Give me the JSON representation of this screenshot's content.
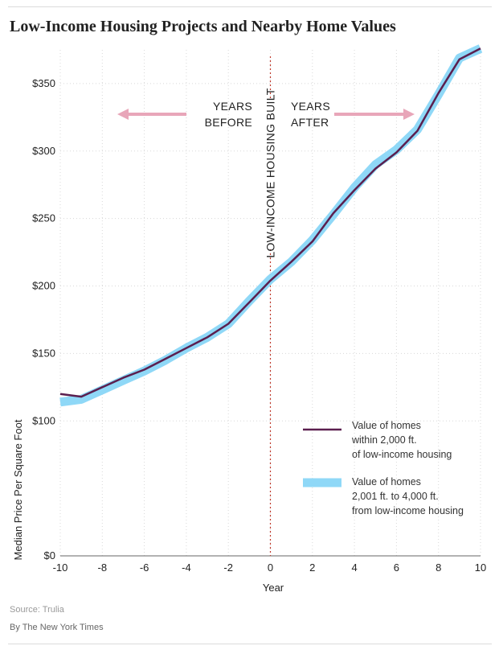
{
  "title": "Low-Income Housing Projects and Nearby Home Values",
  "source": "Source: Trulia",
  "credit": "By The New York Times",
  "colors": {
    "near": "#5b1f4f",
    "far": "#8fd8f7",
    "arrow": "#e8a6b9",
    "divider": "#c0392b"
  },
  "annotations": {
    "years_before": [
      "YEARS",
      "BEFORE"
    ],
    "years_after": [
      "YEARS",
      "AFTER"
    ],
    "built": "LOW-INCOME HOUSING BUILT"
  },
  "chart_data": {
    "type": "line",
    "title": "Low-Income Housing Projects and Nearby Home Values",
    "xlabel": "Year",
    "ylabel": "Median Price Per Square Foot",
    "xlim": [
      -10,
      10
    ],
    "ylim": [
      0,
      375
    ],
    "x_ticks": [
      -10,
      -8,
      -6,
      -4,
      -2,
      0,
      2,
      4,
      6,
      8,
      10
    ],
    "x_tick_labels": [
      "-10",
      "-8",
      "-6",
      "-4",
      "-2",
      "0",
      "2",
      "4",
      "6",
      "8",
      "10"
    ],
    "y_ticks": [
      0,
      100,
      150,
      200,
      250,
      300,
      350
    ],
    "y_tick_labels": [
      "$0",
      "$100",
      "$150",
      "$200",
      "$250",
      "$300",
      "$350"
    ],
    "x": [
      -10,
      -9,
      -8,
      -7,
      -6,
      -5,
      -4,
      -3,
      -2,
      -1,
      0,
      1,
      2,
      3,
      4,
      5,
      6,
      7,
      8,
      9,
      10
    ],
    "series": [
      {
        "name": "Value of homes within 2,000 ft. of low-income housing",
        "legend": [
          "Value of homes",
          "within 2,000 ft.",
          "of low-income housing"
        ],
        "style": "thin-line",
        "values": [
          120,
          118,
          125,
          132,
          138,
          146,
          154,
          162,
          172,
          188,
          204,
          218,
          233,
          254,
          271,
          287,
          299,
          315,
          343,
          368,
          376
        ]
      },
      {
        "name": "Value of homes 2,001 ft. to 4,000 ft. from low-income housing",
        "legend": [
          "Value of homes",
          "2,001 ft. to 4,000 ft.",
          "from low-income housing"
        ],
        "style": "thick-band",
        "values": [
          114,
          116,
          123,
          130,
          137,
          145,
          154,
          162,
          172,
          189,
          205,
          218,
          234,
          253,
          273,
          290,
          301,
          316,
          342,
          369,
          376
        ]
      }
    ],
    "vertical_marker": {
      "x": 0,
      "label": "LOW-INCOME HOUSING BUILT"
    },
    "legend_position": "bottom-right"
  }
}
